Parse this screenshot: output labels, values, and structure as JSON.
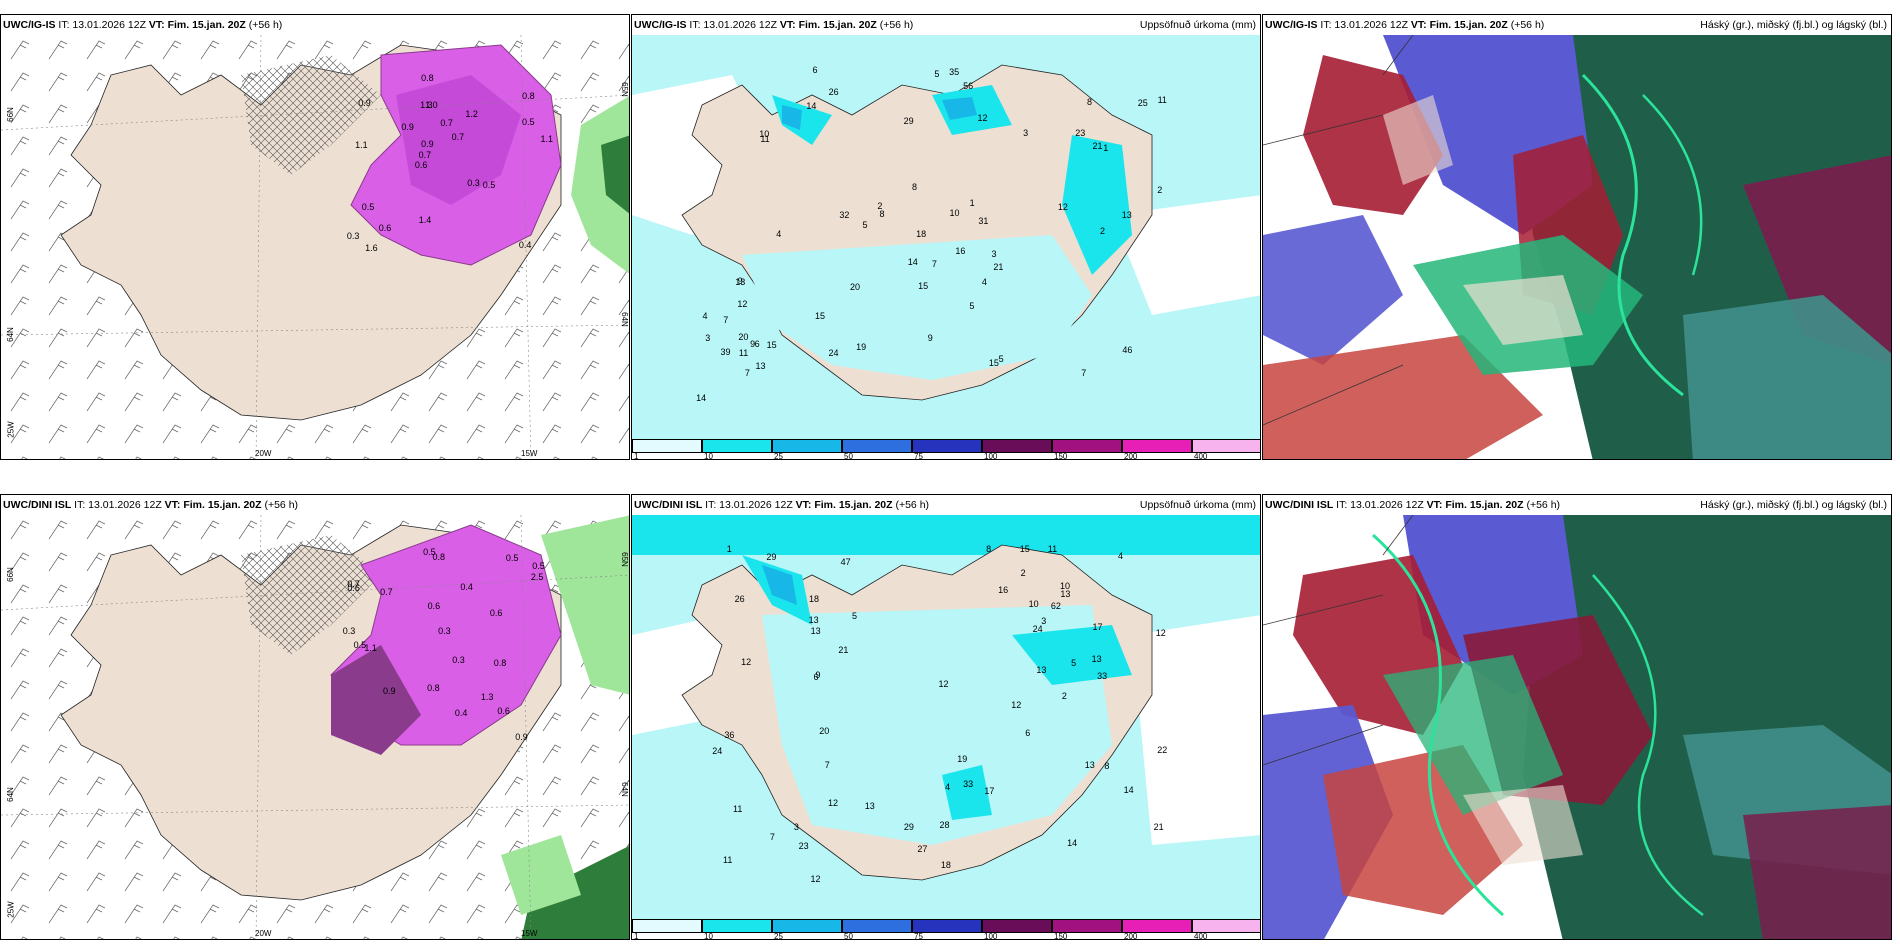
{
  "panels": [
    {
      "id": "p1",
      "model": "UWC/IG-IS",
      "it": "IT: 13.01.2026 12Z",
      "vt": "VT: Fim. 15.jan. 20Z",
      "lead": "(+56 h)",
      "right": "",
      "type": "wind-precip",
      "labels": {
        "lat66": "66N",
        "lat64": "64N",
        "lon25": "25W",
        "lon20": "20W",
        "lon15": "15W",
        "lat65r": "65N",
        "lat64r": "64N"
      },
      "values": [
        "0.4",
        "1.1",
        "0.8",
        "0.6",
        "1.2",
        "1.6",
        "1.3",
        "0.7",
        "0.5",
        "0.9",
        "0.3",
        "0.6",
        "1.0",
        "0.7",
        "0.5",
        "0.9",
        "0.8",
        "1.1",
        "0.3",
        "0.5",
        "0.7",
        "1.4",
        "0.9"
      ]
    },
    {
      "id": "p2",
      "model": "UWC/IG-IS",
      "it": "IT: 13.01.2026 12Z",
      "vt": "VT: Fim. 15.jan. 20Z",
      "lead": "(+56 h)",
      "right": "Uppsöfnuð úrkoma (mm)",
      "type": "precip",
      "values": [
        "14",
        "13",
        "8",
        "7",
        "12",
        "11",
        "31",
        "24",
        "20",
        "25",
        "23",
        "26",
        "10",
        "11",
        "19",
        "56",
        "13",
        "21",
        "35",
        "15",
        "9",
        "2",
        "12",
        "8",
        "14",
        "46",
        "15",
        "39",
        "5",
        "8",
        "16",
        "15",
        "9",
        "6",
        "5",
        "12",
        "7",
        "14",
        "18",
        "21",
        "20",
        "29",
        "2",
        "4",
        "2",
        "1",
        "1",
        "3",
        "3",
        "5",
        "32",
        "4",
        "3",
        "4",
        "6",
        "7",
        "5",
        "10",
        "11",
        "13",
        "15",
        "9",
        "7"
      ]
    },
    {
      "id": "p3",
      "model": "UWC/IG-IS",
      "it": "IT: 13.01.2026 12Z",
      "vt": "VT: Fim. 15.jan. 20Z",
      "lead": "(+56 h)",
      "right": "Háský (gr.), miðský (fj.bl.) og lágský (bl.)",
      "type": "cloud"
    },
    {
      "id": "p4",
      "model": "UWC/DINI ISL",
      "it": "IT: 13.01.2026 12Z",
      "vt": "VT: Fim. 15.jan. 20Z",
      "lead": "(+56 h)",
      "right": "",
      "type": "wind-precip",
      "labels": {
        "lat66": "66N",
        "lat64": "64N",
        "lon25": "25W",
        "lon20": "20W",
        "lon15": "15W",
        "lat65r": "65N",
        "lat64r": "64N"
      },
      "values": [
        "0.3",
        "0.8",
        "0.6",
        "0.5",
        "0.7",
        "0.9",
        "1.1",
        "0.4",
        "0.6",
        "0.5",
        "0.3",
        "0.8",
        "0.5",
        "0.6",
        "0.7",
        "0.9",
        "0.4",
        "0.5",
        "0.3",
        "0.8",
        "1.3",
        "0.6",
        "2.5"
      ]
    },
    {
      "id": "p5",
      "model": "UWC/DINI ISL",
      "it": "IT: 13.01.2026 12Z",
      "vt": "VT: Fim. 15.jan. 20Z",
      "lead": "(+56 h)",
      "right": "Uppsöfnuð úrkoma (mm)",
      "type": "precip",
      "values": [
        "20",
        "18",
        "21",
        "12",
        "23",
        "11",
        "19",
        "22",
        "26",
        "28",
        "13",
        "21",
        "27",
        "12",
        "36",
        "62",
        "29",
        "24",
        "15",
        "47",
        "33",
        "17",
        "14",
        "12",
        "8",
        "9",
        "13",
        "10",
        "13",
        "11",
        "12",
        "8",
        "14",
        "4",
        "7",
        "10",
        "13",
        "24",
        "17",
        "16",
        "13",
        "12",
        "13",
        "3",
        "1",
        "2",
        "12",
        "33",
        "4",
        "5",
        "7",
        "6",
        "11",
        "13",
        "18",
        "29",
        "2",
        "5",
        "6",
        "3"
      ]
    },
    {
      "id": "p6",
      "model": "UWC/DINI ISL",
      "it": "IT: 13.01.2026 12Z",
      "vt": "VT: Fim. 15.jan. 20Z",
      "lead": "(+56 h)",
      "right": "Háský (gr.), miðský (fj.bl.) og lágský (bl.)",
      "type": "cloud"
    }
  ],
  "colorbar": {
    "ticks": [
      "1",
      "10",
      "25",
      "50",
      "75",
      "100",
      "150",
      "200",
      "400"
    ],
    "colors": [
      "#e3fbff",
      "#1ae5ec",
      "#17b7e8",
      "#2e6fe0",
      "#2633bd",
      "#6a0d58",
      "#a1117f",
      "#e81fb7",
      "#f6b3ee"
    ]
  },
  "colors": {
    "land": "#ede0d3",
    "sea": "#ffffff",
    "precip_light": "#b8f6f8",
    "precip_mid": "#1ae5ec",
    "precip_deep": "#17b7e8",
    "snow": "#d95fe6",
    "snow_dark": "#8a3b8c",
    "rain_green": "#9fe59a",
    "high_cloud": "#25b67a",
    "mid_cloud": "#5a5ad2",
    "low_cloud": "#a61d33"
  }
}
